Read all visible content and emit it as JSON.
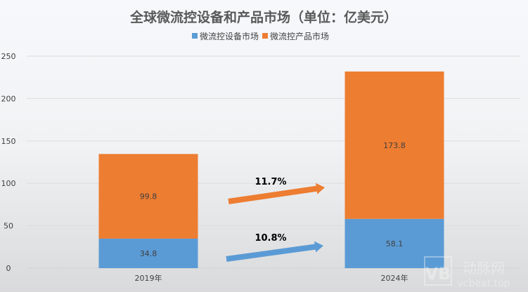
{
  "chart_data": {
    "type": "bar",
    "stacked": true,
    "title": "全球微流控设备和产品市场（单位：亿美元）",
    "categories": [
      "2019年",
      "2024年"
    ],
    "series": [
      {
        "name": "微流控设备市场",
        "values": [
          34.8,
          58.1
        ],
        "color": "#5b9bd5"
      },
      {
        "name": "微流控产品市场",
        "values": [
          99.8,
          173.8
        ],
        "color": "#ed7d31"
      }
    ],
    "ylim": [
      0,
      250
    ],
    "yticks": [
      0,
      50,
      100,
      150,
      200,
      250
    ],
    "grid": true,
    "legend": "top",
    "annotations": [
      {
        "text": "11.7%",
        "series": "微流控产品市场",
        "color": "#ed7d31"
      },
      {
        "text": "10.8%",
        "series": "微流控设备市场",
        "color": "#5b9bd5"
      }
    ]
  },
  "watermark": {
    "logo": "VB",
    "name": "动脉网",
    "url": "vcbeat.top"
  }
}
